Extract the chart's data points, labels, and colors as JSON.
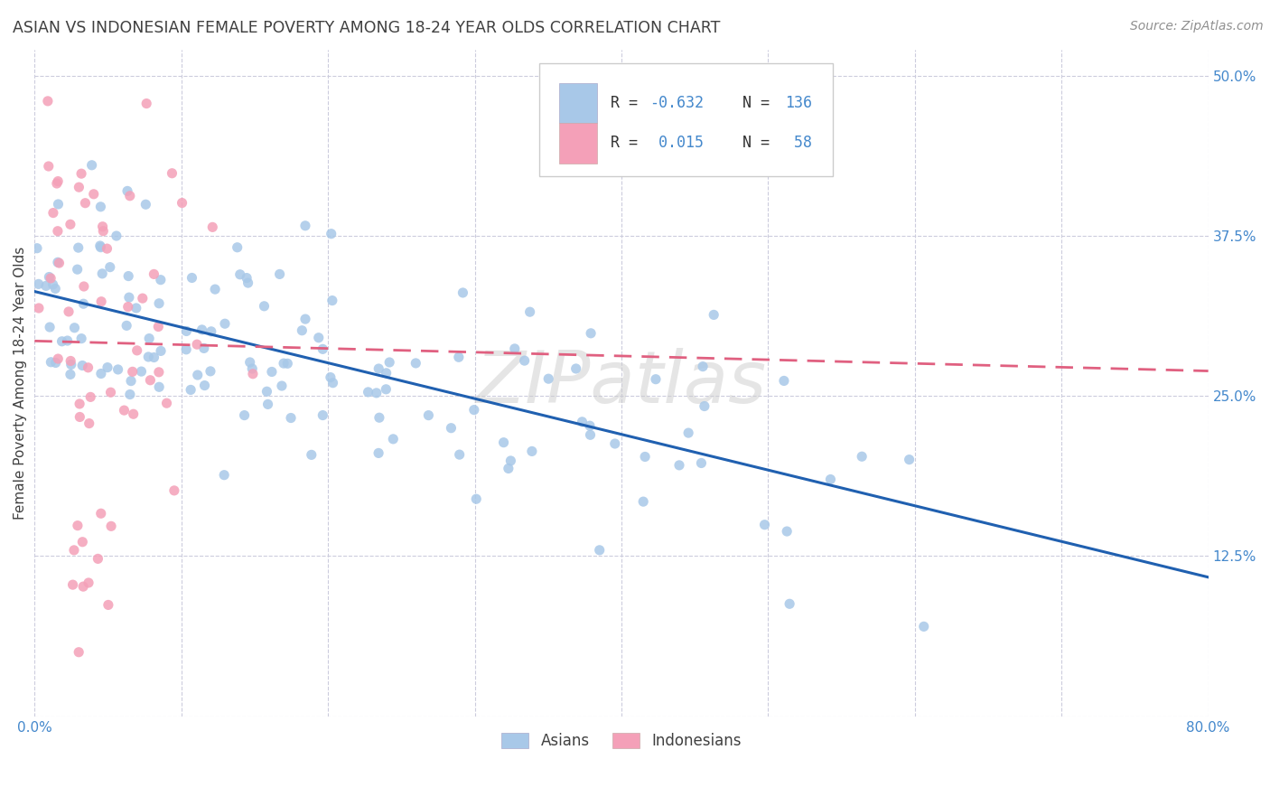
{
  "title": "ASIAN VS INDONESIAN FEMALE POVERTY AMONG 18-24 YEAR OLDS CORRELATION CHART",
  "source": "Source: ZipAtlas.com",
  "ylabel": "Female Poverty Among 18-24 Year Olds",
  "xlim": [
    0.0,
    0.8
  ],
  "ylim": [
    0.0,
    0.52
  ],
  "watermark": "ZIPatlas",
  "asian_R": "-0.632",
  "asian_N": "136",
  "indonesian_R": "0.015",
  "indonesian_N": "58",
  "asian_color": "#a8c8e8",
  "indonesian_color": "#f4a0b8",
  "asian_line_color": "#2060b0",
  "indonesian_line_color": "#e06080",
  "background_color": "#ffffff",
  "grid_color": "#ccccdd",
  "title_color": "#404040",
  "source_color": "#909090",
  "tick_label_color": "#4488cc",
  "legend_text_color": "#333333",
  "legend_value_color": "#4488cc",
  "asian_seed": 101,
  "indonesian_seed": 202
}
